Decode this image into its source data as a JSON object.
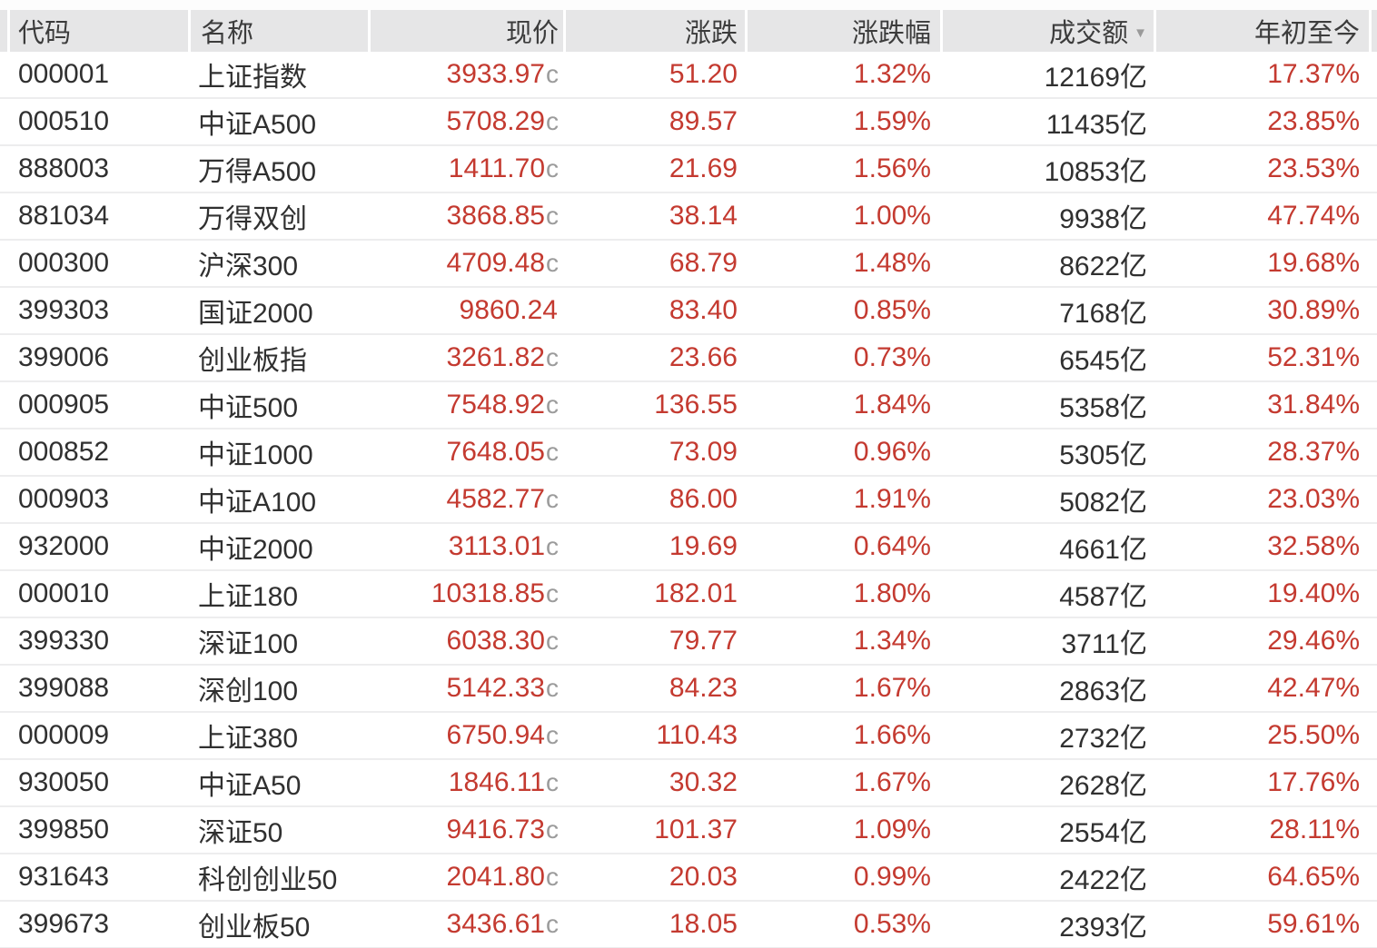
{
  "colors": {
    "up_red": "#c43a30",
    "text_dark": "#303030",
    "price_suffix_gray": "#9b9b9b",
    "header_bg": "#e6e6e7",
    "header_text": "#3c3c3c",
    "row_separator": "#ededee"
  },
  "table": {
    "sort_icon": "▼",
    "sorted_column": "成交额",
    "sort_direction": "desc",
    "columns": [
      {
        "key": "code",
        "label": "代码"
      },
      {
        "key": "name",
        "label": "名称"
      },
      {
        "key": "price",
        "label": "现价"
      },
      {
        "key": "change",
        "label": "涨跌"
      },
      {
        "key": "change_pct",
        "label": "涨跌幅"
      },
      {
        "key": "turnover",
        "label": "成交额"
      },
      {
        "key": "ytd",
        "label": "年初至今"
      }
    ],
    "rows": [
      {
        "code": "000001",
        "name": "上证指数",
        "price": "3933.97",
        "price_suffix": "c",
        "change": "51.20",
        "change_pct": "1.32%",
        "turnover": "12169亿",
        "ytd": "17.37%"
      },
      {
        "code": "000510",
        "name": "中证A500",
        "price": "5708.29",
        "price_suffix": "c",
        "change": "89.57",
        "change_pct": "1.59%",
        "turnover": "11435亿",
        "ytd": "23.85%"
      },
      {
        "code": "888003",
        "name": "万得A500",
        "price": "1411.70",
        "price_suffix": "c",
        "change": "21.69",
        "change_pct": "1.56%",
        "turnover": "10853亿",
        "ytd": "23.53%"
      },
      {
        "code": "881034",
        "name": "万得双创",
        "price": "3868.85",
        "price_suffix": "c",
        "change": "38.14",
        "change_pct": "1.00%",
        "turnover": "9938亿",
        "ytd": "47.74%"
      },
      {
        "code": "000300",
        "name": "沪深300",
        "price": "4709.48",
        "price_suffix": "c",
        "change": "68.79",
        "change_pct": "1.48%",
        "turnover": "8622亿",
        "ytd": "19.68%"
      },
      {
        "code": "399303",
        "name": "国证2000",
        "price": "9860.24",
        "price_suffix": "",
        "change": "83.40",
        "change_pct": "0.85%",
        "turnover": "7168亿",
        "ytd": "30.89%"
      },
      {
        "code": "399006",
        "name": "创业板指",
        "price": "3261.82",
        "price_suffix": "c",
        "change": "23.66",
        "change_pct": "0.73%",
        "turnover": "6545亿",
        "ytd": "52.31%"
      },
      {
        "code": "000905",
        "name": "中证500",
        "price": "7548.92",
        "price_suffix": "c",
        "change": "136.55",
        "change_pct": "1.84%",
        "turnover": "5358亿",
        "ytd": "31.84%"
      },
      {
        "code": "000852",
        "name": "中证1000",
        "price": "7648.05",
        "price_suffix": "c",
        "change": "73.09",
        "change_pct": "0.96%",
        "turnover": "5305亿",
        "ytd": "28.37%"
      },
      {
        "code": "000903",
        "name": "中证A100",
        "price": "4582.77",
        "price_suffix": "c",
        "change": "86.00",
        "change_pct": "1.91%",
        "turnover": "5082亿",
        "ytd": "23.03%"
      },
      {
        "code": "932000",
        "name": "中证2000",
        "price": "3113.01",
        "price_suffix": "c",
        "change": "19.69",
        "change_pct": "0.64%",
        "turnover": "4661亿",
        "ytd": "32.58%"
      },
      {
        "code": "000010",
        "name": "上证180",
        "price": "10318.85",
        "price_suffix": "c",
        "change": "182.01",
        "change_pct": "1.80%",
        "turnover": "4587亿",
        "ytd": "19.40%"
      },
      {
        "code": "399330",
        "name": "深证100",
        "price": "6038.30",
        "price_suffix": "c",
        "change": "79.77",
        "change_pct": "1.34%",
        "turnover": "3711亿",
        "ytd": "29.46%"
      },
      {
        "code": "399088",
        "name": "深创100",
        "price": "5142.33",
        "price_suffix": "c",
        "change": "84.23",
        "change_pct": "1.67%",
        "turnover": "2863亿",
        "ytd": "42.47%"
      },
      {
        "code": "000009",
        "name": "上证380",
        "price": "6750.94",
        "price_suffix": "c",
        "change": "110.43",
        "change_pct": "1.66%",
        "turnover": "2732亿",
        "ytd": "25.50%"
      },
      {
        "code": "930050",
        "name": "中证A50",
        "price": "1846.11",
        "price_suffix": "c",
        "change": "30.32",
        "change_pct": "1.67%",
        "turnover": "2628亿",
        "ytd": "17.76%"
      },
      {
        "code": "399850",
        "name": "深证50",
        "price": "9416.73",
        "price_suffix": "c",
        "change": "101.37",
        "change_pct": "1.09%",
        "turnover": "2554亿",
        "ytd": "28.11%"
      },
      {
        "code": "931643",
        "name": "科创创业50",
        "price": "2041.80",
        "price_suffix": "c",
        "change": "20.03",
        "change_pct": "0.99%",
        "turnover": "2422亿",
        "ytd": "64.65%"
      },
      {
        "code": "399673",
        "name": "创业板50",
        "price": "3436.61",
        "price_suffix": "c",
        "change": "18.05",
        "change_pct": "0.53%",
        "turnover": "2393亿",
        "ytd": "59.61%"
      }
    ]
  }
}
